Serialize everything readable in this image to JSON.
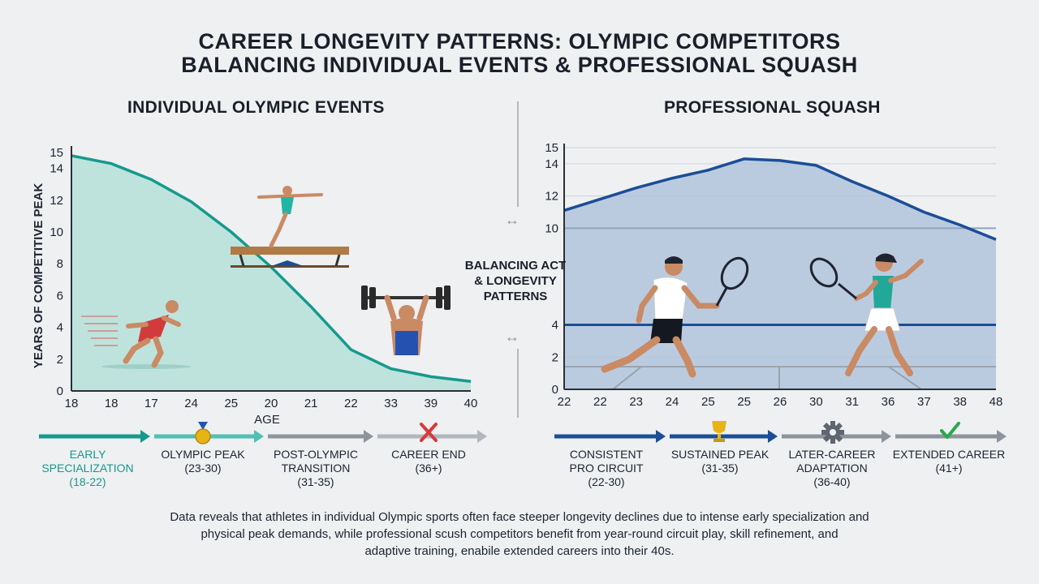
{
  "title_line1": "CAREER LONGEVITY PATTERNS: OLYMPIC COMPETITORS",
  "title_line2": "BALANCING INDIVIDUAL EVENTS & PROFESSIONAL SQUASH",
  "center_label": [
    "BALANCING ACT",
    "& LONGEVITY",
    "PATTERNS"
  ],
  "footnote": [
    "Data reveals that athletes in individual Olympic sports often face steeper longevity declines due to intense early specialization and",
    "physical peak demands, while professional scush competitors benefit from year-round circuit play, skill refinement, and",
    "adaptive training, enabile extended careers into their 40s."
  ],
  "colors": {
    "teal": "#159a8c",
    "teal_fill": "#b5e0d9",
    "navy": "#1b4e96",
    "navy_fill": "#aabfd8",
    "gray_arrow": "#8e949c"
  },
  "chart_data": [
    {
      "type": "area",
      "title": "INDIVIDUAL OLYMPIC EVENTS",
      "xlabel": "AGE",
      "ylabel": "YEARS OF COMPETITIVE PEAK",
      "ylim": [
        0,
        15
      ],
      "yticks": [
        0,
        2,
        4,
        6,
        8,
        10,
        12,
        14,
        15
      ],
      "categories": [
        "18",
        "18",
        "17",
        "24",
        "25",
        "20",
        "21",
        "22",
        "33",
        "39",
        "40"
      ],
      "values": [
        14.8,
        14.3,
        13.3,
        11.9,
        10.0,
        7.8,
        5.3,
        2.6,
        1.4,
        0.9,
        0.6
      ],
      "grid": false,
      "illustrations": [
        "runner",
        "gymnast-on-beam",
        "weightlifter"
      ],
      "stages": [
        {
          "lines": [
            "EARLY",
            "SPECIALIZATION",
            "(18-22)"
          ],
          "color": "#159a8c",
          "icon": ""
        },
        {
          "lines": [
            "OLYMPIC PEAK",
            "(23-30)"
          ],
          "color": "#1d2430",
          "icon": "medal-icon"
        },
        {
          "lines": [
            "POST-OLYMPIC",
            "TRANSITION",
            "(31-35)"
          ],
          "color": "#1d2430",
          "icon": ""
        },
        {
          "lines": [
            "CAREER END",
            "(36+)"
          ],
          "color": "#1d2430",
          "icon": "cross-icon"
        }
      ]
    },
    {
      "type": "area",
      "title": "PROFESSIONAL SQUASH",
      "xlabel": "",
      "ylabel": "",
      "ylim": [
        0,
        15
      ],
      "yticks": [
        0,
        2,
        4,
        10,
        12,
        14,
        15
      ],
      "categories": [
        "22",
        "22",
        "23",
        "24",
        "25",
        "25",
        "26",
        "30",
        "31",
        "36",
        "37",
        "38",
        "48"
      ],
      "values": [
        11.1,
        11.8,
        12.5,
        13.1,
        13.6,
        14.3,
        14.2,
        13.9,
        12.9,
        12.0,
        11.0,
        10.2,
        9.3
      ],
      "reference_lines": [
        10,
        4
      ],
      "grid": true,
      "illustrations": [
        "male-squash-player",
        "female-squash-player"
      ],
      "stages": [
        {
          "lines": [
            "CONSISTENT",
            "PRO CIRCUIT",
            "(22-30)"
          ],
          "color": "#1d2430",
          "icon": ""
        },
        {
          "lines": [
            "SUSTAINED PEAK",
            "(31-35)"
          ],
          "color": "#1d2430",
          "icon": "trophy-icon"
        },
        {
          "lines": [
            "LATER-CAREER",
            "ADAPTATION",
            "(36-40)"
          ],
          "color": "#1d2430",
          "icon": "gear-icon"
        },
        {
          "lines": [
            "EXTENDED CAREER",
            "(41+)"
          ],
          "color": "#1d2430",
          "icon": "check-icon"
        }
      ]
    }
  ]
}
